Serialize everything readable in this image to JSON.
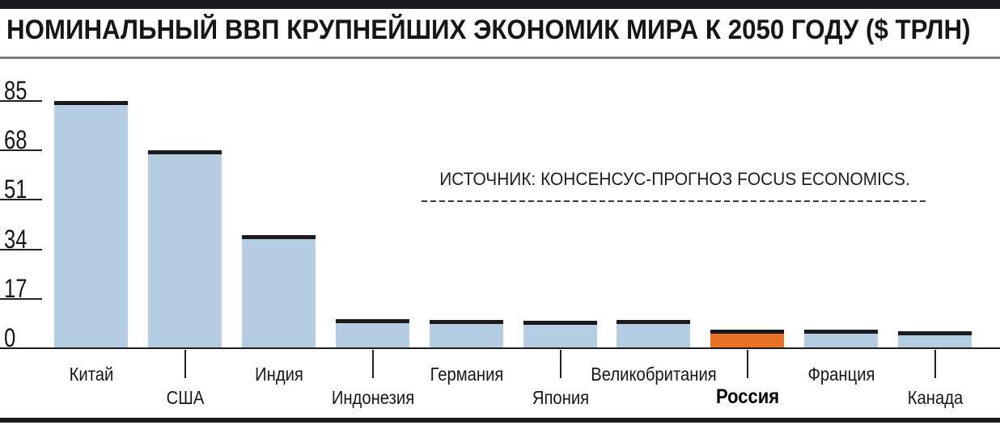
{
  "header": {
    "title": "НОМИНАЛЬНЫЙ ВВП КРУПНЕЙШИХ ЭКОНОМИК МИРА К 2050 ГОДУ ($ ТРЛН)"
  },
  "source": {
    "label": "ИСТОЧНИК: КОНСЕНСУС-ПРОГНОЗ FOCUS ECONOMICS."
  },
  "chart_data": {
    "type": "bar",
    "title": "НОМИНАЛЬНЫЙ ВВП КРУПНЕЙШИХ ЭКОНОМИК МИРА К 2050 ГОДУ ($ ТРЛН)",
    "unit": "$ трлн",
    "categories": [
      "Китай",
      "США",
      "Индия",
      "Индонезия",
      "Германия",
      "Япония",
      "Великобритания",
      "Россия",
      "Франция",
      "Канада"
    ],
    "values": [
      85,
      68,
      39,
      10,
      9.8,
      9.5,
      9.8,
      6.3,
      6.3,
      5.7
    ],
    "highlighted_category": "Россия",
    "y_ticks": [
      85,
      68,
      51,
      34,
      17,
      0
    ],
    "ylim": [
      0,
      85
    ],
    "grid": false,
    "legend": false,
    "label_rows": "staggered",
    "colors": {
      "bar": "#b5cde2",
      "highlight": "#e97226",
      "bar_cap": "#1b1b1f"
    },
    "source": "ИСТОЧНИК: КОНСЕНСУС-ПРОГНОЗ FOCUS ECONOMICS."
  }
}
